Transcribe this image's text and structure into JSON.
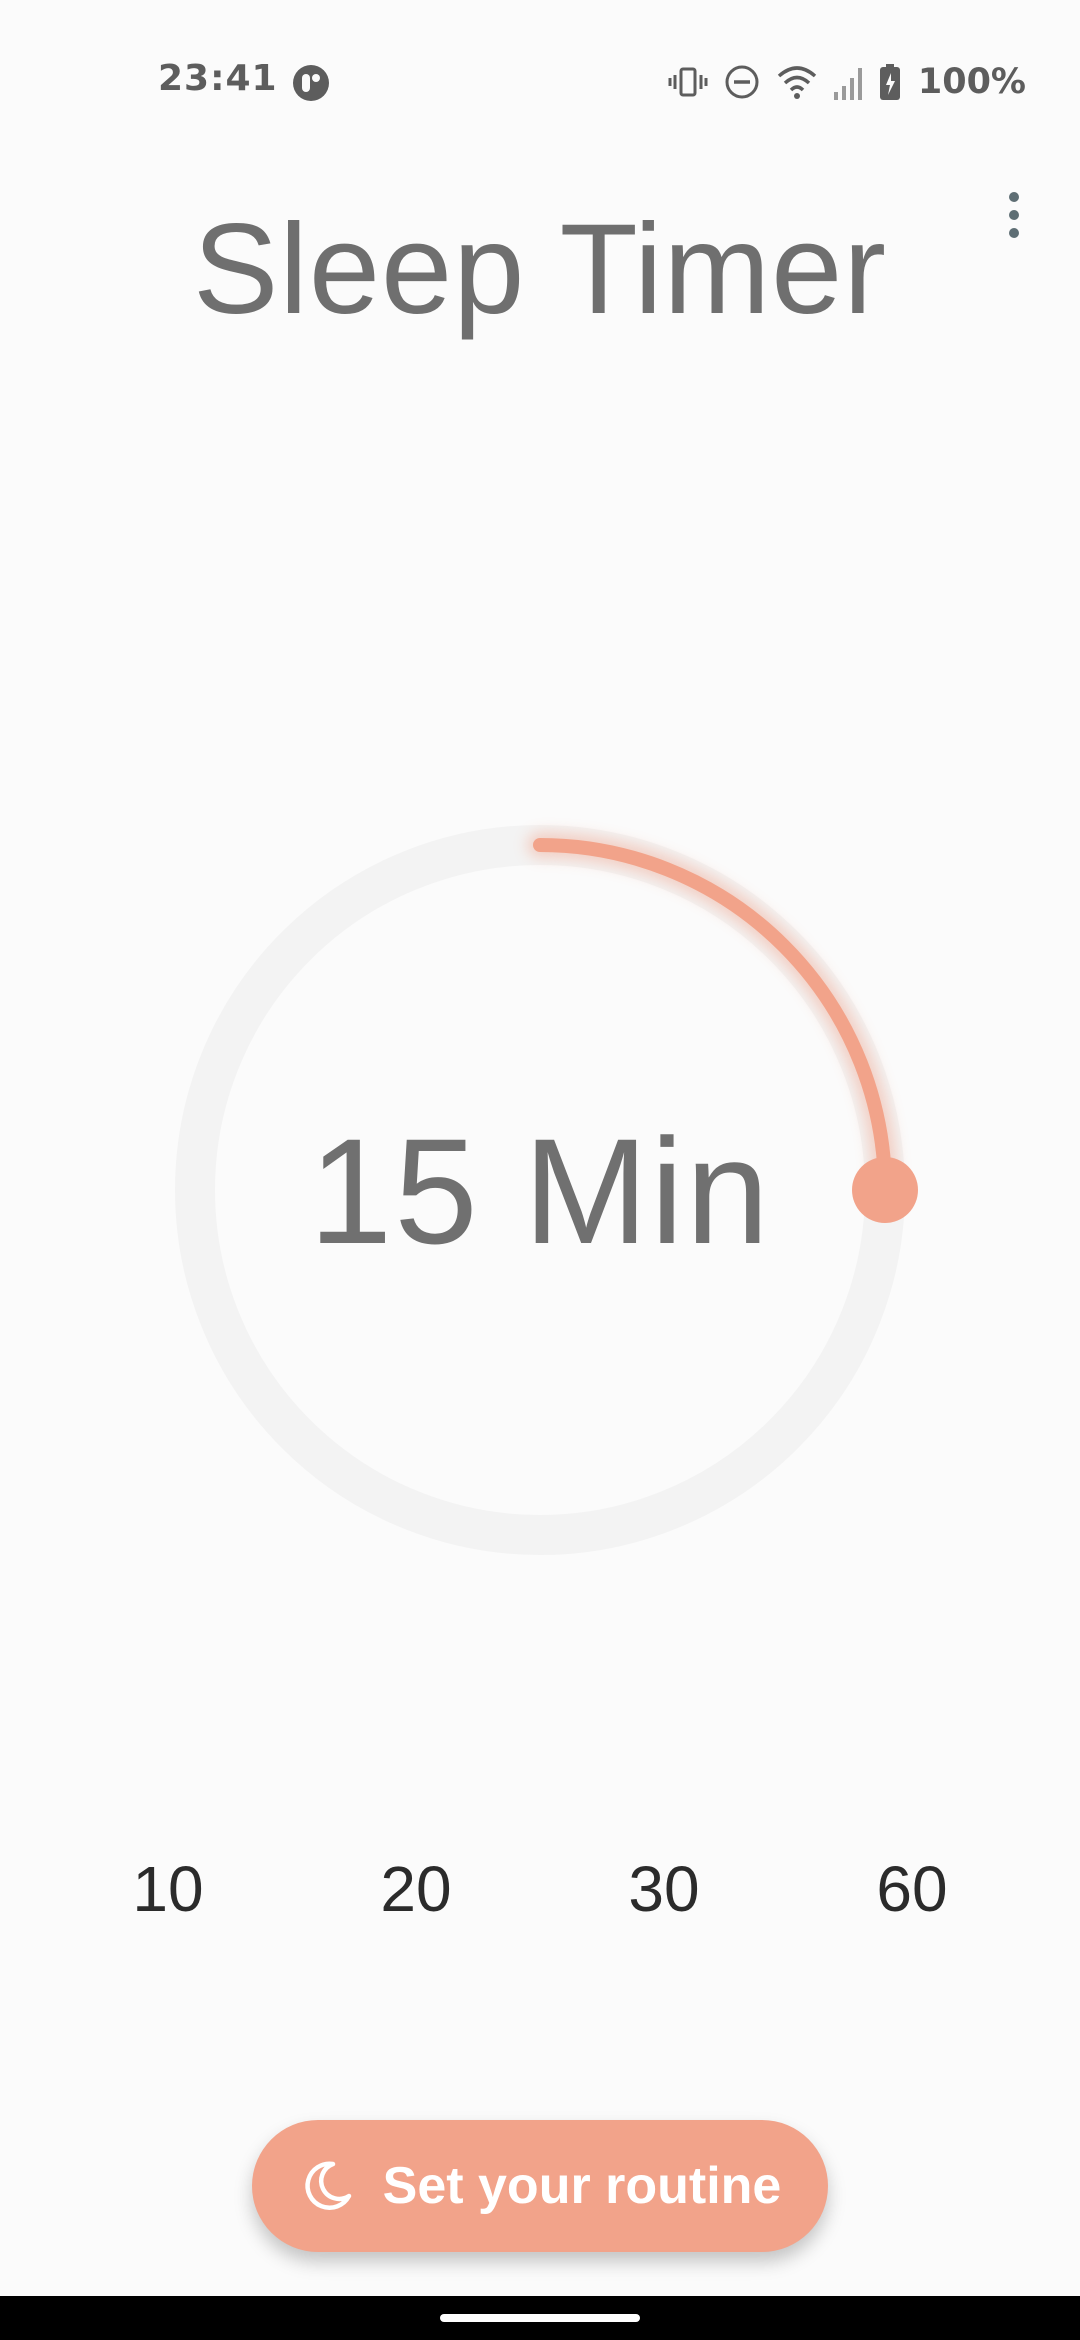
{
  "status_bar": {
    "time": "23:41",
    "battery": "100%",
    "icons": [
      "app-notification-icon",
      "vibrate-icon",
      "do-not-disturb-icon",
      "wifi-icon",
      "cell-signal-icon",
      "battery-charging-icon"
    ]
  },
  "header": {
    "title": "Sleep Timer",
    "menu_icon": "more-vert-icon"
  },
  "timer": {
    "value_label": "15 Min",
    "minutes": 15,
    "progress_fraction": 0.25,
    "accent_color": "#f2a38a",
    "track_color": "#f3f3f3"
  },
  "presets": [
    {
      "label": "10"
    },
    {
      "label": "20"
    },
    {
      "label": "30"
    },
    {
      "label": "60"
    }
  ],
  "routine_button": {
    "label": "Set your routine",
    "icon": "moon-icon",
    "color": "#f2a38a"
  }
}
